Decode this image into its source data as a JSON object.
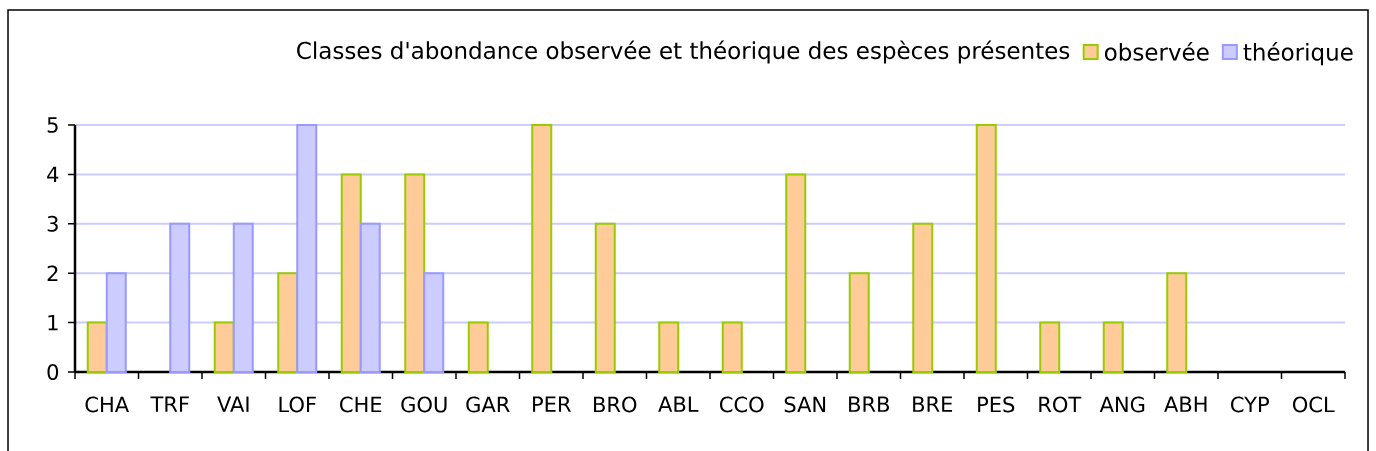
{
  "chart_data": {
    "type": "bar",
    "title": "Classes d'abondance observée et théorique des espèces présentes",
    "categories": [
      "CHA",
      "TRF",
      "VAI",
      "LOF",
      "CHE",
      "GOU",
      "GAR",
      "PER",
      "BRO",
      "ABL",
      "CCO",
      "SAN",
      "BRB",
      "BRE",
      "PES",
      "ROT",
      "ANG",
      "ABH",
      "CYP",
      "OCL"
    ],
    "series": [
      {
        "name": "observée",
        "color": "#ffcc99",
        "values": [
          1,
          null,
          1,
          2,
          4,
          4,
          1,
          5,
          3,
          1,
          1,
          4,
          2,
          3,
          5,
          1,
          1,
          2,
          null,
          null
        ]
      },
      {
        "name": "théorique",
        "color": "#ccccff",
        "values": [
          2,
          3,
          3,
          5,
          3,
          2,
          null,
          null,
          null,
          null,
          null,
          null,
          null,
          null,
          null,
          null,
          null,
          null,
          null,
          null
        ]
      }
    ],
    "ylim": [
      0,
      5
    ],
    "yticks": [
      0,
      1,
      2,
      3,
      4,
      5
    ],
    "grid": "y",
    "legend": "top right"
  }
}
